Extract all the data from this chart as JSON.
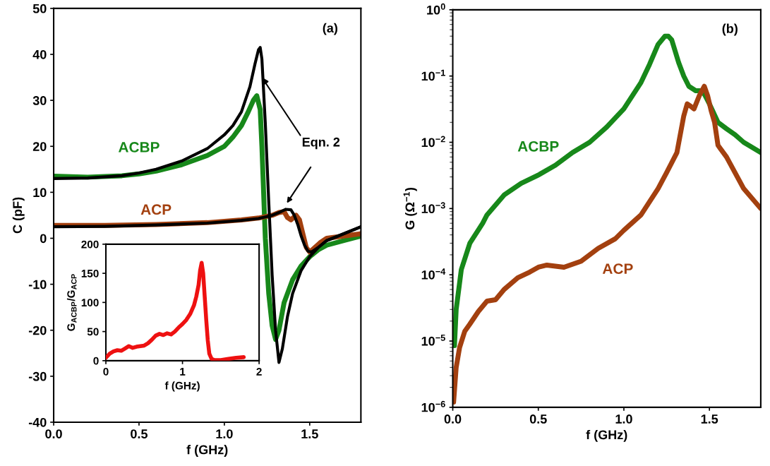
{
  "chart_data": [
    {
      "type": "line",
      "xlabel": "f (GHz)",
      "ylabel": "C (pF)",
      "xlim": [
        0,
        1.8
      ],
      "ylim": [
        -40,
        50
      ],
      "xticks": [
        {
          "value": 0,
          "label": "0.0"
        },
        {
          "value": 0.5,
          "label": "0.5"
        },
        {
          "value": 1,
          "label": "1.0"
        },
        {
          "value": 1.5,
          "label": "1.5"
        }
      ],
      "yticks": [
        -40,
        -30,
        -20,
        -10,
        0,
        10,
        20,
        30,
        40,
        50
      ],
      "annotations": [
        "(a)",
        {
          "text": "Eqn. 2",
          "x": 1.22,
          "y": 35
        }
      ],
      "series": [
        {
          "name": "ACBP",
          "color": "#17881a",
          "x": [
            0,
            0.2,
            0.4,
            0.5,
            0.6,
            0.75,
            0.9,
            1.0,
            1.05,
            1.1,
            1.14,
            1.17,
            1.19,
            1.21,
            1.22,
            1.23,
            1.24,
            1.26,
            1.28,
            1.3,
            1.32,
            1.35,
            1.4,
            1.45,
            1.5,
            1.55,
            1.6,
            1.7,
            1.8
          ],
          "values": [
            13.5,
            13.3,
            13.6,
            14,
            14.6,
            16,
            18,
            20,
            22,
            24.5,
            27.5,
            30,
            31,
            28,
            20,
            10,
            0,
            -12,
            -19,
            -22,
            -20,
            -14,
            -9,
            -6,
            -4,
            -2.5,
            -1.5,
            -0.5,
            0.5
          ]
        },
        {
          "color": "#000000",
          "x": [
            0,
            0.2,
            0.4,
            0.5,
            0.6,
            0.75,
            0.9,
            1.0,
            1.05,
            1.1,
            1.15,
            1.18,
            1.2,
            1.21,
            1.22,
            1.24,
            1.26,
            1.28,
            1.3,
            1.32,
            1.34,
            1.37,
            1.4,
            1.45,
            1.5,
            1.55,
            1.6,
            1.7,
            1.8
          ],
          "values": [
            13,
            13.1,
            13.6,
            14.2,
            15,
            16.8,
            19.5,
            22.5,
            24.5,
            27.5,
            33,
            38,
            41,
            41.5,
            39,
            25,
            8,
            -8,
            -20,
            -27,
            -24,
            -17,
            -12,
            -7,
            -4,
            -2,
            -0.5,
            1,
            2.5
          ]
        },
        {
          "name": "ACP",
          "color": "#a3400f",
          "x": [
            0,
            0.3,
            0.6,
            0.9,
            1.1,
            1.2,
            1.28,
            1.32,
            1.35,
            1.37,
            1.39,
            1.42,
            1.44,
            1.46,
            1.48,
            1.5,
            1.53,
            1.56,
            1.6,
            1.7,
            1.8
          ],
          "values": [
            2.8,
            2.8,
            3,
            3.4,
            4,
            4.4,
            5,
            5.6,
            5.8,
            4.5,
            4,
            5,
            4,
            1,
            -2,
            -3,
            -2,
            -1,
            0,
            0.5,
            1
          ]
        },
        {
          "color": "#000000",
          "x": [
            0,
            0.3,
            0.6,
            0.9,
            1.1,
            1.2,
            1.28,
            1.32,
            1.36,
            1.39,
            1.41,
            1.43,
            1.45,
            1.47,
            1.49,
            1.51,
            1.55,
            1.6,
            1.7,
            1.8
          ],
          "values": [
            2.5,
            2.6,
            2.9,
            3.3,
            3.9,
            4.3,
            5,
            5.6,
            6.3,
            6.2,
            5,
            3,
            0.5,
            -1.5,
            -2.8,
            -3,
            -2,
            -0.5,
            1,
            2.5
          ]
        }
      ]
    },
    {
      "type": "line",
      "xlabel": "f (GHz)",
      "ylabel": "G$_{ACBP}$/G$_{ACP}$",
      "xlim": [
        0,
        2
      ],
      "ylim": [
        0,
        200
      ],
      "xticks": [
        0,
        1,
        2
      ],
      "yticks": [
        0,
        50,
        100,
        150,
        200
      ],
      "series": [
        {
          "color": "#ee1111",
          "x": [
            0,
            0.05,
            0.1,
            0.15,
            0.2,
            0.25,
            0.3,
            0.35,
            0.4,
            0.5,
            0.55,
            0.6,
            0.65,
            0.7,
            0.75,
            0.8,
            0.85,
            0.9,
            0.95,
            1.0,
            1.05,
            1.1,
            1.15,
            1.18,
            1.21,
            1.23,
            1.25,
            1.27,
            1.29,
            1.31,
            1.33,
            1.35,
            1.38,
            1.42,
            1.5,
            1.6,
            1.7,
            1.8
          ],
          "values": [
            5,
            12,
            16,
            18,
            17,
            21,
            25,
            22,
            24,
            26,
            30,
            36,
            43,
            46,
            44,
            47,
            45,
            50,
            57,
            63,
            70,
            80,
            95,
            110,
            130,
            155,
            168,
            150,
            110,
            70,
            35,
            12,
            3,
            1,
            1,
            3,
            5,
            6
          ]
        }
      ]
    },
    {
      "type": "line",
      "xlabel": "f (GHz)",
      "ylabel": "G (Ω$^{−1}$)",
      "log": "y",
      "xlim": [
        0,
        1.8
      ],
      "ylim": [
        1e-06,
        1
      ],
      "xticks": [
        {
          "value": 0,
          "label": "0.0"
        },
        {
          "value": 0.5,
          "label": "0.5"
        },
        {
          "value": 1,
          "label": "1.0"
        },
        {
          "value": 1.5,
          "label": "1.5"
        }
      ],
      "yticks": [
        {
          "value": 1e-06,
          "label": "10$^{−6}$"
        },
        {
          "value": 1e-05,
          "label": "10$^{−5}$"
        },
        {
          "value": 0.0001,
          "label": "10$^{−4}$"
        },
        {
          "value": 0.001,
          "label": "10$^{−3}$"
        },
        {
          "value": 0.01,
          "label": "10$^{−2}$"
        },
        {
          "value": 0.1,
          "label": "10$^{−1}$"
        },
        {
          "value": 1,
          "label": "10$^{0}$"
        }
      ],
      "annotations": [
        "(b)"
      ],
      "series": [
        {
          "name": "ACBP",
          "color": "#17881a",
          "x": [
            0.01,
            0.02,
            0.05,
            0.1,
            0.175,
            0.2,
            0.3,
            0.4,
            0.5,
            0.6,
            0.7,
            0.8,
            0.9,
            1.0,
            1.1,
            1.15,
            1.2,
            1.24,
            1.26,
            1.28,
            1.32,
            1.35,
            1.38,
            1.42,
            1.46,
            1.5,
            1.55,
            1.6,
            1.65,
            1.7,
            1.8
          ],
          "values": [
            8.5e-06,
            3e-05,
            0.00012,
            0.0003,
            0.0006,
            0.0008,
            0.0016,
            0.0024,
            0.0032,
            0.0045,
            0.007,
            0.01,
            0.017,
            0.032,
            0.08,
            0.15,
            0.3,
            0.4,
            0.4,
            0.35,
            0.16,
            0.1,
            0.07,
            0.06,
            0.06,
            0.038,
            0.02,
            0.016,
            0.013,
            0.01,
            0.007
          ]
        },
        {
          "name": "ACP",
          "color": "#a3400f",
          "x": [
            0.005,
            0.02,
            0.04,
            0.07,
            0.1,
            0.15,
            0.2,
            0.25,
            0.3,
            0.38,
            0.45,
            0.5,
            0.55,
            0.65,
            0.75,
            0.85,
            0.95,
            1.0,
            1.1,
            1.2,
            1.25,
            1.31,
            1.35,
            1.37,
            1.39,
            1.41,
            1.44,
            1.47,
            1.49,
            1.51,
            1.53,
            1.55,
            1.6,
            1.7,
            1.8
          ],
          "values": [
            1.2e-06,
            4e-06,
            8e-06,
            1.4e-05,
            1.8e-05,
            2.8e-05,
            4e-05,
            4.2e-05,
            6e-05,
            9e-05,
            0.00011,
            0.00013,
            0.00014,
            0.00013,
            0.00016,
            0.00025,
            0.00035,
            0.00047,
            0.0008,
            0.002,
            0.0035,
            0.007,
            0.025,
            0.038,
            0.035,
            0.032,
            0.05,
            0.07,
            0.05,
            0.03,
            0.02,
            0.009,
            0.006,
            0.002,
            0.001
          ]
        }
      ]
    }
  ]
}
